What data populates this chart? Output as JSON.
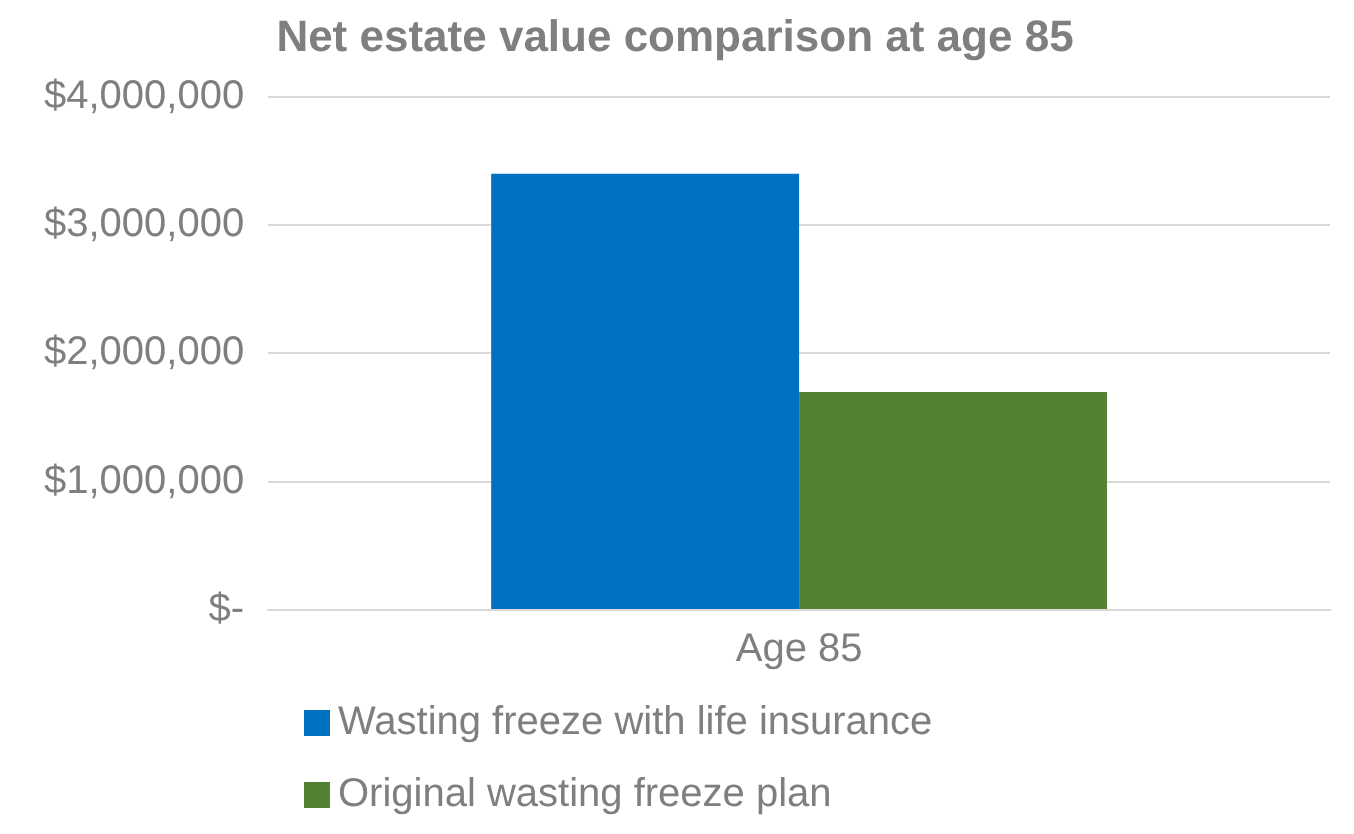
{
  "chart_data": {
    "type": "bar",
    "title": "Net estate value comparison at age 85",
    "categories": [
      "Age 85"
    ],
    "series": [
      {
        "name": "Wasting freeze with life insurance",
        "color": "#0070c0",
        "values": [
          3400000
        ]
      },
      {
        "name": "Original wasting freeze plan",
        "color": "#548235",
        "values": [
          1700000
        ]
      }
    ],
    "ylim": [
      0,
      4000000
    ],
    "yticks": [
      {
        "value": 0,
        "label": "$-"
      },
      {
        "value": 1000000,
        "label": "$1,000,000"
      },
      {
        "value": 2000000,
        "label": "$2,000,000"
      },
      {
        "value": 3000000,
        "label": "$3,000,000"
      },
      {
        "value": 4000000,
        "label": "$4,000,000"
      }
    ],
    "grid": "y",
    "legend": "bottom"
  }
}
